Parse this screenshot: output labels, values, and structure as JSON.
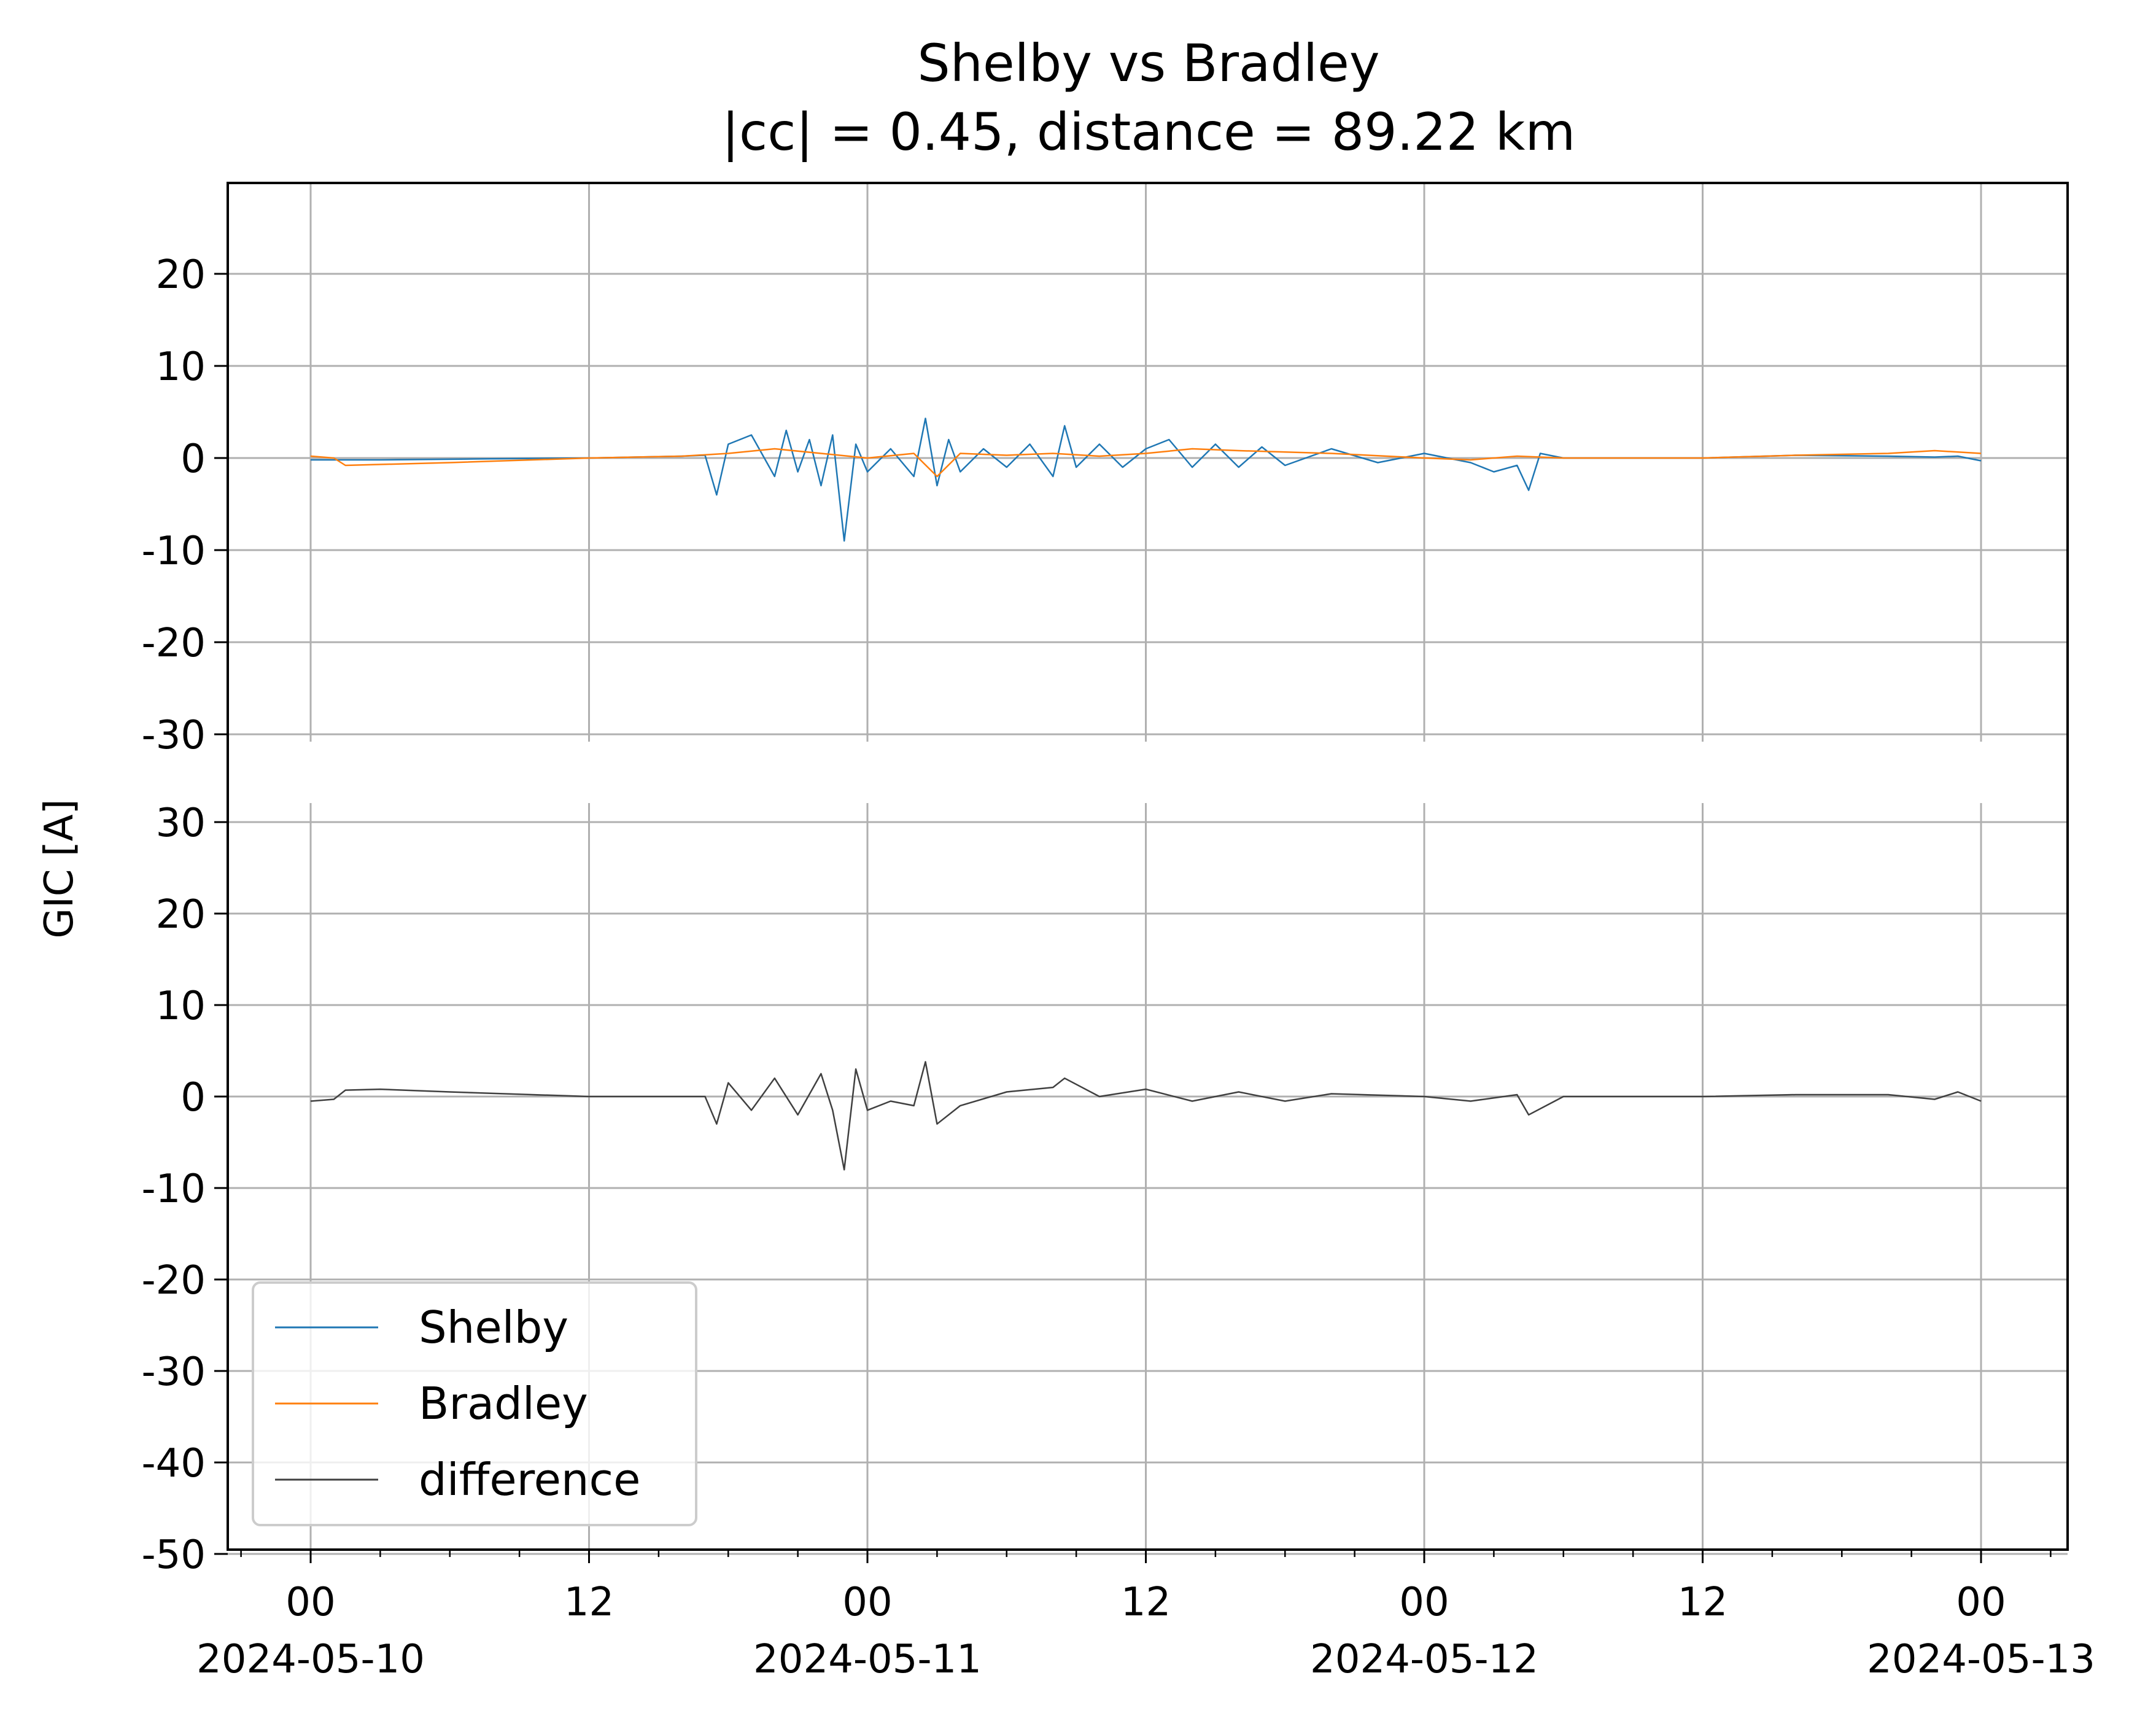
{
  "title": "Shelby vs Bradley",
  "subtitle": "|cc| = 0.45, distance = 89.22 km",
  "ylabel": "GIC [A]",
  "colors": {
    "Shelby": "#1f77b4",
    "Bradley": "#ff7f0e",
    "difference": "#404040",
    "grid": "#b0b0b0"
  },
  "legend": {
    "placement": "lower-left",
    "entries": [
      "Shelby",
      "Bradley",
      "difference"
    ]
  },
  "chart_data": {
    "type": "line",
    "xlim": [
      "2024-05-10 00:00",
      "2024-05-13 00:00"
    ],
    "x_ticks": [
      {
        "x": "2024-05-10 00:00",
        "label1": "00",
        "label2": "2024-05-10"
      },
      {
        "x": "2024-05-10 12:00",
        "label1": "12",
        "label2": ""
      },
      {
        "x": "2024-05-11 00:00",
        "label1": "00",
        "label2": "2024-05-11"
      },
      {
        "x": "2024-05-11 12:00",
        "label1": "12",
        "label2": ""
      },
      {
        "x": "2024-05-12 00:00",
        "label1": "00",
        "label2": "2024-05-12"
      },
      {
        "x": "2024-05-12 12:00",
        "label1": "12",
        "label2": ""
      },
      {
        "x": "2024-05-13 00:00",
        "label1": "00",
        "label2": "2024-05-13"
      }
    ],
    "grid": true,
    "panels": [
      {
        "name": "top",
        "ylim": [
          -30,
          30
        ],
        "y_ticks": [
          20,
          10,
          0,
          -10,
          -20,
          -30
        ],
        "y_tick_labels": [
          "20",
          "10",
          "0",
          "-10",
          "-20",
          "-30"
        ],
        "series": [
          {
            "name": "Shelby",
            "x": [
              "2024-05-10 00:00",
              "2024-05-10 03:00",
              "2024-05-10 07:00",
              "2024-05-10 12:00",
              "2024-05-10 16:00",
              "2024-05-10 17:00",
              "2024-05-10 17:30",
              "2024-05-10 18:00",
              "2024-05-10 19:00",
              "2024-05-10 20:00",
              "2024-05-10 20:30",
              "2024-05-10 21:00",
              "2024-05-10 21:30",
              "2024-05-10 22:00",
              "2024-05-10 22:30",
              "2024-05-10 23:00",
              "2024-05-10 23:30",
              "2024-05-11 00:00",
              "2024-05-11 01:00",
              "2024-05-11 02:00",
              "2024-05-11 02:30",
              "2024-05-11 03:00",
              "2024-05-11 03:30",
              "2024-05-11 04:00",
              "2024-05-11 05:00",
              "2024-05-11 06:00",
              "2024-05-11 07:00",
              "2024-05-11 08:00",
              "2024-05-11 08:30",
              "2024-05-11 09:00",
              "2024-05-11 10:00",
              "2024-05-11 11:00",
              "2024-05-11 12:00",
              "2024-05-11 13:00",
              "2024-05-11 14:00",
              "2024-05-11 15:00",
              "2024-05-11 16:00",
              "2024-05-11 17:00",
              "2024-05-11 18:00",
              "2024-05-11 20:00",
              "2024-05-11 22:00",
              "2024-05-12 00:00",
              "2024-05-12 02:00",
              "2024-05-12 03:00",
              "2024-05-12 04:00",
              "2024-05-12 04:30",
              "2024-05-12 05:00",
              "2024-05-12 06:00",
              "2024-05-12 08:00",
              "2024-05-12 12:00",
              "2024-05-12 16:00",
              "2024-05-12 20:00",
              "2024-05-12 22:00",
              "2024-05-12 23:00",
              "2024-05-13 00:00"
            ],
            "y": [
              -0.2,
              -0.2,
              -0.1,
              0.0,
              0.2,
              0.3,
              -4.0,
              1.5,
              2.5,
              -2.0,
              3.0,
              -1.5,
              2.0,
              -3.0,
              2.5,
              -9.0,
              1.5,
              -1.5,
              1.0,
              -2.0,
              4.3,
              -3.0,
              2.0,
              -1.5,
              1.0,
              -1.0,
              1.5,
              -2.0,
              3.5,
              -1.0,
              1.5,
              -1.0,
              1.0,
              2.0,
              -1.0,
              1.5,
              -1.0,
              1.2,
              -0.8,
              1.0,
              -0.5,
              0.5,
              -0.5,
              -1.5,
              -0.8,
              -3.5,
              0.5,
              0.0,
              0.0,
              0.0,
              0.3,
              0.2,
              0.1,
              0.2,
              -0.3
            ]
          },
          {
            "name": "Bradley",
            "x": [
              "2024-05-10 00:00",
              "2024-05-10 01:00",
              "2024-05-10 01:30",
              "2024-05-10 06:00",
              "2024-05-10 12:00",
              "2024-05-10 16:00",
              "2024-05-10 18:00",
              "2024-05-10 20:00",
              "2024-05-10 22:00",
              "2024-05-11 00:00",
              "2024-05-11 02:00",
              "2024-05-11 03:00",
              "2024-05-11 04:00",
              "2024-05-11 06:00",
              "2024-05-11 08:00",
              "2024-05-11 10:00",
              "2024-05-11 12:00",
              "2024-05-11 14:00",
              "2024-05-11 16:00",
              "2024-05-11 20:00",
              "2024-05-12 00:00",
              "2024-05-12 02:00",
              "2024-05-12 04:00",
              "2024-05-12 06:00",
              "2024-05-12 08:00",
              "2024-05-12 12:00",
              "2024-05-12 16:00",
              "2024-05-12 20:00",
              "2024-05-12 22:00",
              "2024-05-13 00:00"
            ],
            "y": [
              0.2,
              0.0,
              -0.8,
              -0.5,
              0.0,
              0.2,
              0.5,
              1.0,
              0.5,
              0.0,
              0.5,
              -2.0,
              0.5,
              0.3,
              0.5,
              0.2,
              0.5,
              1.0,
              0.8,
              0.5,
              0.0,
              -0.2,
              0.2,
              0.0,
              0.0,
              0.0,
              0.3,
              0.5,
              0.8,
              0.5
            ]
          }
        ]
      },
      {
        "name": "bottom",
        "ylim": [
          -50,
          30
        ],
        "y_ticks": [
          30,
          20,
          10,
          0,
          -10,
          -20,
          -30,
          -40,
          -50
        ],
        "y_tick_labels": [
          "30",
          "20",
          "10",
          "0",
          "-10",
          "-20",
          "-30",
          "-40",
          "-50"
        ],
        "series": [
          {
            "name": "difference",
            "x": [
              "2024-05-10 00:00",
              "2024-05-10 01:00",
              "2024-05-10 01:30",
              "2024-05-10 03:00",
              "2024-05-10 06:00",
              "2024-05-10 12:00",
              "2024-05-10 16:00",
              "2024-05-10 17:00",
              "2024-05-10 17:30",
              "2024-05-10 18:00",
              "2024-05-10 19:00",
              "2024-05-10 20:00",
              "2024-05-10 21:00",
              "2024-05-10 22:00",
              "2024-05-10 22:30",
              "2024-05-10 23:00",
              "2024-05-10 23:30",
              "2024-05-11 00:00",
              "2024-05-11 01:00",
              "2024-05-11 02:00",
              "2024-05-11 02:30",
              "2024-05-11 03:00",
              "2024-05-11 04:00",
              "2024-05-11 06:00",
              "2024-05-11 08:00",
              "2024-05-11 08:30",
              "2024-05-11 10:00",
              "2024-05-11 12:00",
              "2024-05-11 14:00",
              "2024-05-11 16:00",
              "2024-05-11 18:00",
              "2024-05-11 20:00",
              "2024-05-12 00:00",
              "2024-05-12 02:00",
              "2024-05-12 04:00",
              "2024-05-12 04:30",
              "2024-05-12 06:00",
              "2024-05-12 12:00",
              "2024-05-12 16:00",
              "2024-05-12 20:00",
              "2024-05-12 22:00",
              "2024-05-12 23:00",
              "2024-05-13 00:00"
            ],
            "y": [
              -0.5,
              -0.3,
              0.7,
              0.8,
              0.5,
              0.0,
              0.0,
              0.0,
              -3.0,
              1.5,
              -1.5,
              2.0,
              -2.0,
              2.5,
              -1.5,
              -8.0,
              3.0,
              -1.5,
              -0.5,
              -1.0,
              3.8,
              -3.0,
              -1.0,
              0.5,
              1.0,
              2.0,
              0.0,
              0.8,
              -0.5,
              0.5,
              -0.5,
              0.3,
              0.0,
              -0.5,
              0.2,
              -2.0,
              0.0,
              0.0,
              0.2,
              0.2,
              -0.3,
              0.5,
              -0.5
            ]
          }
        ]
      }
    ]
  }
}
